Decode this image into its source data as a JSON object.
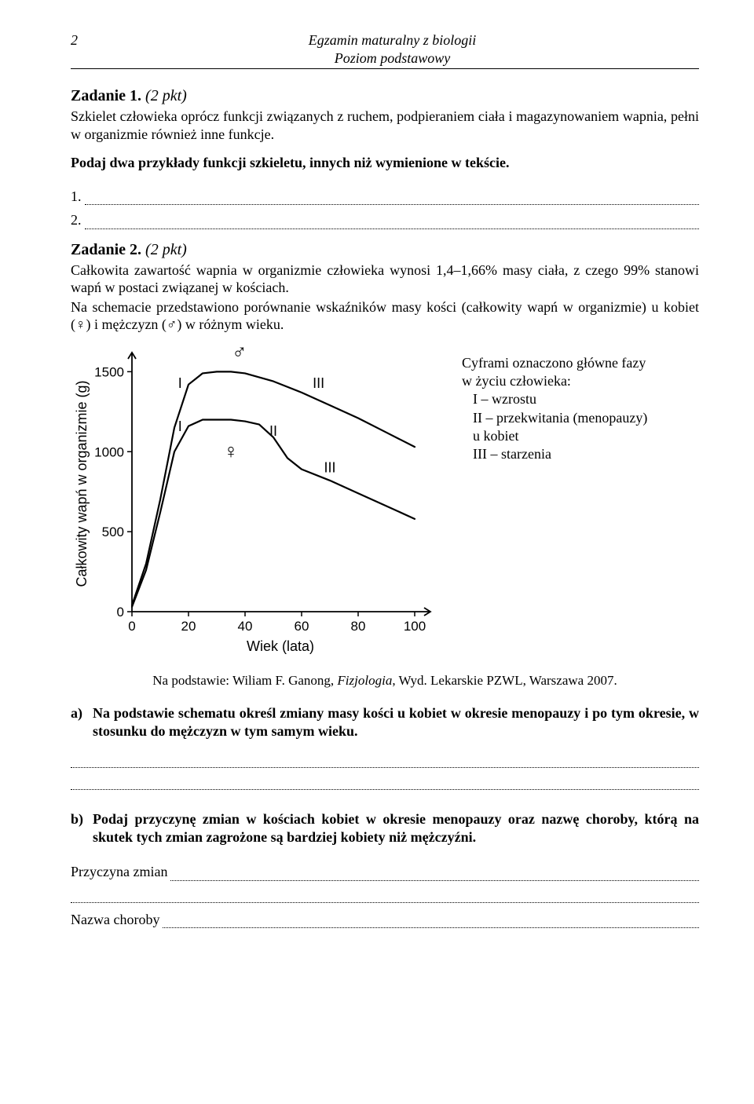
{
  "header": {
    "page_number": "2",
    "title_line1": "Egzamin maturalny z biologii",
    "title_line2": "Poziom podstawowy"
  },
  "task1": {
    "heading": "Zadanie 1.",
    "points": "(2 pkt)",
    "text": "Szkielet człowieka oprócz funkcji związanych z ruchem, podpieraniem ciała i magazynowaniem wapnia, pełni w organizmie również inne funkcje.",
    "prompt": "Podaj dwa przykłady funkcji szkieletu, innych niż wymienione w tekście.",
    "num1": "1.",
    "num2": "2."
  },
  "task2": {
    "heading": "Zadanie 2.",
    "points": "(2 pkt)",
    "para1": "Całkowita zawartość wapnia w organizmie człowieka wynosi 1,4–1,66% masy ciała, z czego 99% stanowi wapń w postaci związanej w kościach.",
    "para2": "Na schemacie przedstawiono porównanie wskaźników masy kości (całkowity wapń w organizmie) u kobiet (♀) i mężczyzn (♂) w różnym wieku.",
    "legend": {
      "line1": "Cyframi oznaczono główne fazy",
      "line2": "w życiu człowieka:",
      "item1": "I – wzrostu",
      "item2": "II – przekwitania (menopauzy)",
      "item2b": "u kobiet",
      "item3": "III – starzenia"
    },
    "source_prefix": "Na podstawie: Wiliam F. Ganong, ",
    "source_italic": "Fizjologia",
    "source_suffix": ", Wyd. Lekarskie PZWL, Warszawa 2007.",
    "qa": {
      "marker": "a)",
      "text": "Na podstawie schematu określ zmiany masy kości u kobiet w okresie menopauzy i po tym okresie, w stosunku do mężczyzn w tym samym wieku."
    },
    "qb": {
      "marker": "b)",
      "text": "Podaj przyczynę zmian w kościach kobiet w okresie menopauzy oraz nazwę choroby, którą na skutek tych zmian zagrożone są bardziej kobiety niż mężczyźni."
    },
    "field_cause": "Przyczyna zmian",
    "field_disease": "Nazwa choroby"
  },
  "chart": {
    "type": "line",
    "y_label": "Całkowity wapń w organizmie (g)",
    "x_label": "Wiek (lata)",
    "x_ticks": [
      0,
      20,
      40,
      60,
      80,
      100
    ],
    "y_ticks": [
      0,
      500,
      1000,
      1500
    ],
    "xlim": [
      0,
      105
    ],
    "ylim": [
      0,
      1600
    ],
    "series": {
      "male": {
        "symbol": "♂",
        "symbol_xy": [
          38,
          1580
        ],
        "points": [
          [
            0,
            40
          ],
          [
            5,
            300
          ],
          [
            10,
            700
          ],
          [
            15,
            1150
          ],
          [
            20,
            1420
          ],
          [
            25,
            1490
          ],
          [
            30,
            1500
          ],
          [
            35,
            1500
          ],
          [
            40,
            1490
          ],
          [
            50,
            1440
          ],
          [
            60,
            1370
          ],
          [
            70,
            1290
          ],
          [
            80,
            1210
          ],
          [
            90,
            1120
          ],
          [
            100,
            1030
          ]
        ],
        "phase_labels": [
          {
            "text": "I",
            "x": 17,
            "y": 1400
          },
          {
            "text": "III",
            "x": 66,
            "y": 1400
          }
        ]
      },
      "female": {
        "symbol": "♀",
        "symbol_xy": [
          35,
          960
        ],
        "points": [
          [
            0,
            30
          ],
          [
            5,
            260
          ],
          [
            10,
            620
          ],
          [
            15,
            1000
          ],
          [
            20,
            1160
          ],
          [
            25,
            1200
          ],
          [
            30,
            1200
          ],
          [
            35,
            1200
          ],
          [
            40,
            1190
          ],
          [
            45,
            1170
          ],
          [
            50,
            1090
          ],
          [
            55,
            960
          ],
          [
            60,
            890
          ],
          [
            70,
            820
          ],
          [
            80,
            740
          ],
          [
            90,
            660
          ],
          [
            100,
            580
          ]
        ],
        "phase_labels": [
          {
            "text": "I",
            "x": 17,
            "y": 1130
          },
          {
            "text": "II",
            "x": 50,
            "y": 1100
          },
          {
            "text": "III",
            "x": 70,
            "y": 870
          }
        ]
      }
    },
    "color": "#000000",
    "bg": "#ffffff",
    "line_width": 2.2,
    "axis_width": 1.8,
    "tick_fontsize": 17,
    "label_fontsize": 18
  }
}
